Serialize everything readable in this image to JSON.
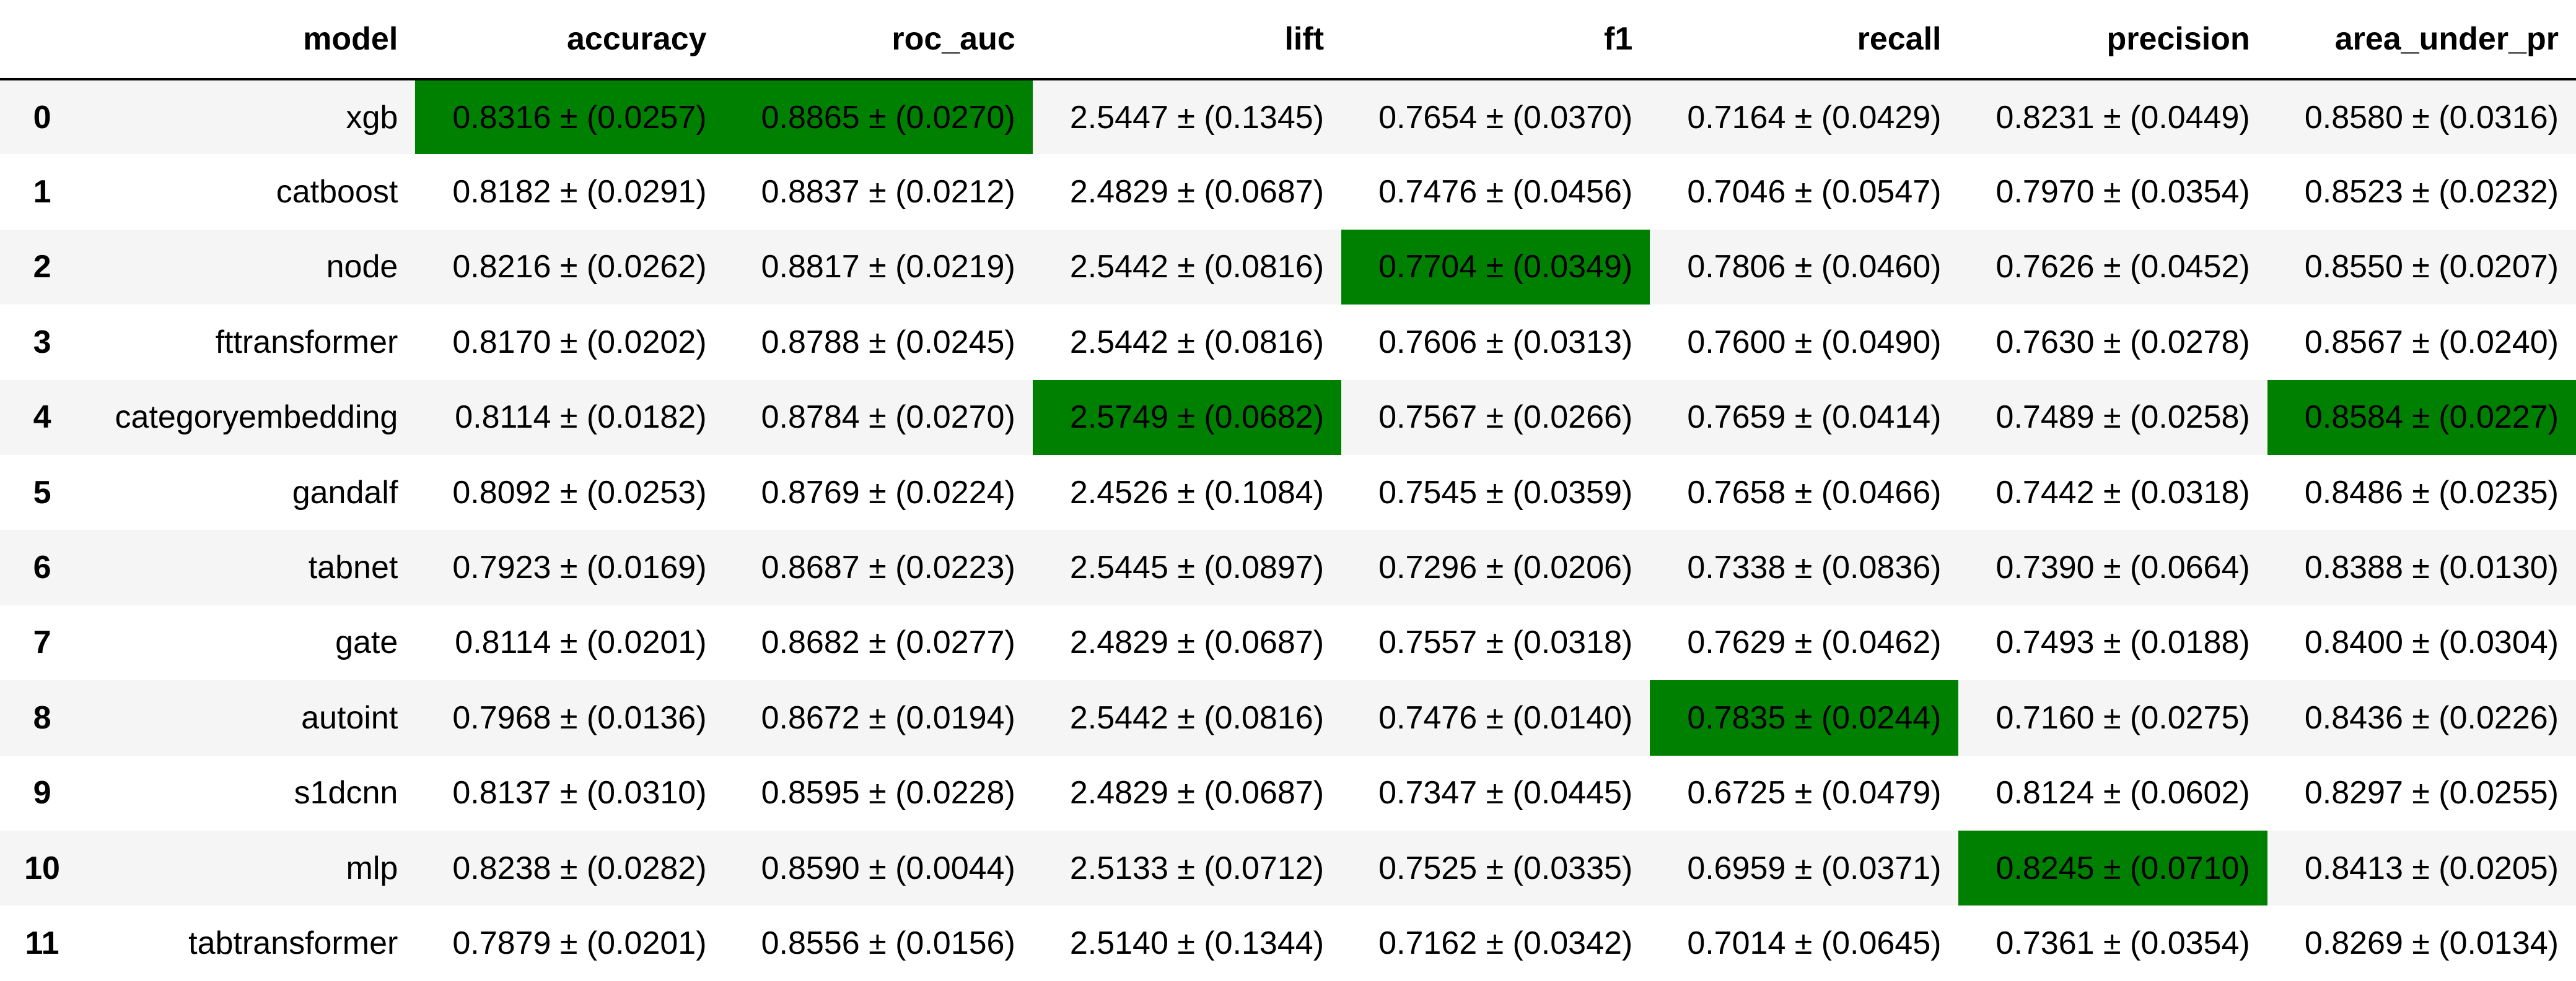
{
  "chart_data": {
    "type": "table",
    "index_header": "",
    "columns": [
      "model",
      "accuracy",
      "roc_auc",
      "lift",
      "f1",
      "recall",
      "precision",
      "area_under_pr"
    ],
    "rows": [
      {
        "index": "0",
        "cells": [
          "xgb",
          "0.8316 ± (0.0257)",
          "0.8865 ± (0.0270)",
          "2.5447 ± (0.1345)",
          "0.7654 ± (0.0370)",
          "0.7164 ± (0.0429)",
          "0.8231 ± (0.0449)",
          "0.8580 ± (0.0316)"
        ]
      },
      {
        "index": "1",
        "cells": [
          "catboost",
          "0.8182 ± (0.0291)",
          "0.8837 ± (0.0212)",
          "2.4829 ± (0.0687)",
          "0.7476 ± (0.0456)",
          "0.7046 ± (0.0547)",
          "0.7970 ± (0.0354)",
          "0.8523 ± (0.0232)"
        ]
      },
      {
        "index": "2",
        "cells": [
          "node",
          "0.8216 ± (0.0262)",
          "0.8817 ± (0.0219)",
          "2.5442 ± (0.0816)",
          "0.7704 ± (0.0349)",
          "0.7806 ± (0.0460)",
          "0.7626 ± (0.0452)",
          "0.8550 ± (0.0207)"
        ]
      },
      {
        "index": "3",
        "cells": [
          "fttransformer",
          "0.8170 ± (0.0202)",
          "0.8788 ± (0.0245)",
          "2.5442 ± (0.0816)",
          "0.7606 ± (0.0313)",
          "0.7600 ± (0.0490)",
          "0.7630 ± (0.0278)",
          "0.8567 ± (0.0240)"
        ]
      },
      {
        "index": "4",
        "cells": [
          "categoryembedding",
          "0.8114 ± (0.0182)",
          "0.8784 ± (0.0270)",
          "2.5749 ± (0.0682)",
          "0.7567 ± (0.0266)",
          "0.7659 ± (0.0414)",
          "0.7489 ± (0.0258)",
          "0.8584 ± (0.0227)"
        ]
      },
      {
        "index": "5",
        "cells": [
          "gandalf",
          "0.8092 ± (0.0253)",
          "0.8769 ± (0.0224)",
          "2.4526 ± (0.1084)",
          "0.7545 ± (0.0359)",
          "0.7658 ± (0.0466)",
          "0.7442 ± (0.0318)",
          "0.8486 ± (0.0235)"
        ]
      },
      {
        "index": "6",
        "cells": [
          "tabnet",
          "0.7923 ± (0.0169)",
          "0.8687 ± (0.0223)",
          "2.5445 ± (0.0897)",
          "0.7296 ± (0.0206)",
          "0.7338 ± (0.0836)",
          "0.7390 ± (0.0664)",
          "0.8388 ± (0.0130)"
        ]
      },
      {
        "index": "7",
        "cells": [
          "gate",
          "0.8114 ± (0.0201)",
          "0.8682 ± (0.0277)",
          "2.4829 ± (0.0687)",
          "0.7557 ± (0.0318)",
          "0.7629 ± (0.0462)",
          "0.7493 ± (0.0188)",
          "0.8400 ± (0.0304)"
        ]
      },
      {
        "index": "8",
        "cells": [
          "autoint",
          "0.7968 ± (0.0136)",
          "0.8672 ± (0.0194)",
          "2.5442 ± (0.0816)",
          "0.7476 ± (0.0140)",
          "0.7835 ± (0.0244)",
          "0.7160 ± (0.0275)",
          "0.8436 ± (0.0226)"
        ]
      },
      {
        "index": "9",
        "cells": [
          "s1dcnn",
          "0.8137 ± (0.0310)",
          "0.8595 ± (0.0228)",
          "2.4829 ± (0.0687)",
          "0.7347 ± (0.0445)",
          "0.6725 ± (0.0479)",
          "0.8124 ± (0.0602)",
          "0.8297 ± (0.0255)"
        ]
      },
      {
        "index": "10",
        "cells": [
          "mlp",
          "0.8238 ± (0.0282)",
          "0.8590 ± (0.0044)",
          "2.5133 ± (0.0712)",
          "0.7525 ± (0.0335)",
          "0.6959 ± (0.0371)",
          "0.8245 ± (0.0710)",
          "0.8413 ± (0.0205)"
        ]
      },
      {
        "index": "11",
        "cells": [
          "tabtransformer",
          "0.7879 ± (0.0201)",
          "0.8556 ± (0.0156)",
          "2.5140 ± (0.1344)",
          "0.7162 ± (0.0342)",
          "0.7014 ± (0.0645)",
          "0.7361 ± (0.0354)",
          "0.8269 ± (0.0134)"
        ]
      }
    ],
    "highlighted": [
      {
        "row": "0",
        "column": "accuracy"
      },
      {
        "row": "0",
        "column": "roc_auc"
      },
      {
        "row": "4",
        "column": "lift"
      },
      {
        "row": "2",
        "column": "f1"
      },
      {
        "row": "8",
        "column": "recall"
      },
      {
        "row": "10",
        "column": "precision"
      },
      {
        "row": "4",
        "column": "area_under_pr"
      }
    ],
    "highlight_color": "#008000",
    "stripe_color": "#f5f5f5",
    "background_color": "#ffffff"
  }
}
